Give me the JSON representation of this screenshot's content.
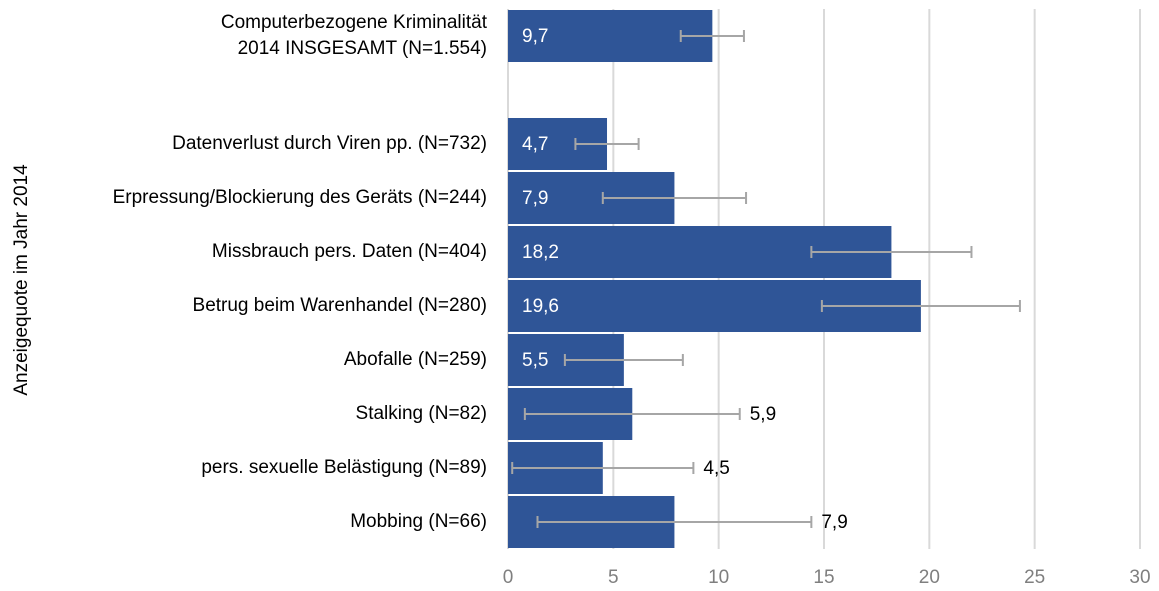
{
  "chart_data": {
    "type": "hbar",
    "y_axis_label": "Anzeigequote im Jahr 2014",
    "categories": [
      "Computerbezogene Kriminalität\n2014 INSGESAMT (N=1.554)",
      null,
      "Datenverlust durch Viren pp. (N=732)",
      "Erpressung/Blockierung des Geräts (N=244)",
      "Missbrauch pers. Daten (N=404)",
      "Betrug beim Warenhandel (N=280)",
      "Abofalle (N=259)",
      "Stalking (N=82)",
      "pers. sexuelle Belästigung (N=89)",
      "Mobbing (N=66)"
    ],
    "values": [
      9.7,
      null,
      4.7,
      7.9,
      18.2,
      19.6,
      5.5,
      5.9,
      4.5,
      7.9
    ],
    "value_labels": [
      "9,7",
      null,
      "4,7",
      "7,9",
      "18,2",
      "19,6",
      "5,5",
      "5,9",
      "4,5",
      "7,9"
    ],
    "errors": [
      1.5,
      null,
      1.5,
      3.4,
      3.8,
      4.7,
      2.8,
      5.1,
      4.3,
      6.5
    ],
    "color": "#2f5597",
    "error_color": "#a6a6a6",
    "xlim": [
      0,
      30
    ],
    "xticks": [
      0,
      5,
      10,
      15,
      20,
      25,
      30
    ],
    "grid": true
  }
}
